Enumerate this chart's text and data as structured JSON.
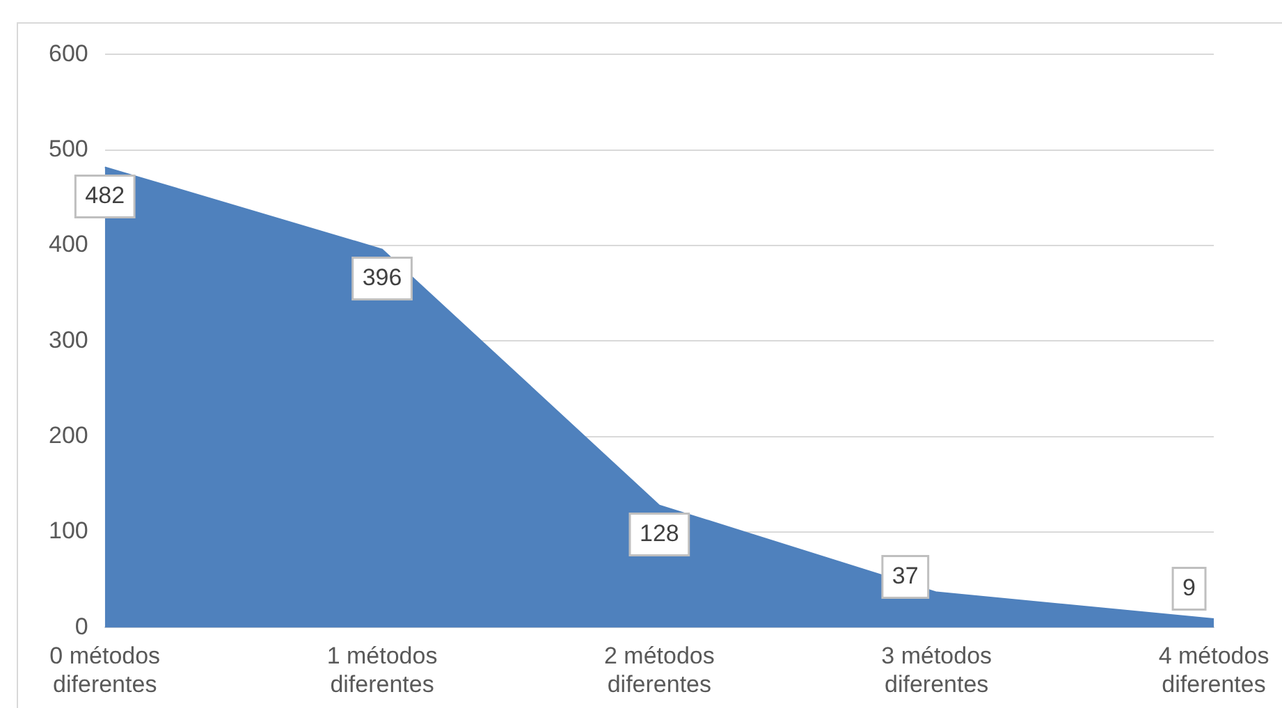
{
  "chart_data": {
    "type": "area",
    "categories": [
      "0 métodos diferentes",
      "1 métodos diferentes",
      "2 métodos diferentes",
      "3 métodos diferentes",
      "4 métodos diferentes"
    ],
    "series": [
      {
        "color": "#4f81bd",
        "values": [
          482,
          396,
          128,
          37,
          9
        ]
      }
    ],
    "ylim": [
      0,
      600
    ],
    "yticks": [
      0,
      100,
      200,
      300,
      400,
      500,
      600
    ],
    "grid": "y",
    "legend": false,
    "data_labels": true
  }
}
